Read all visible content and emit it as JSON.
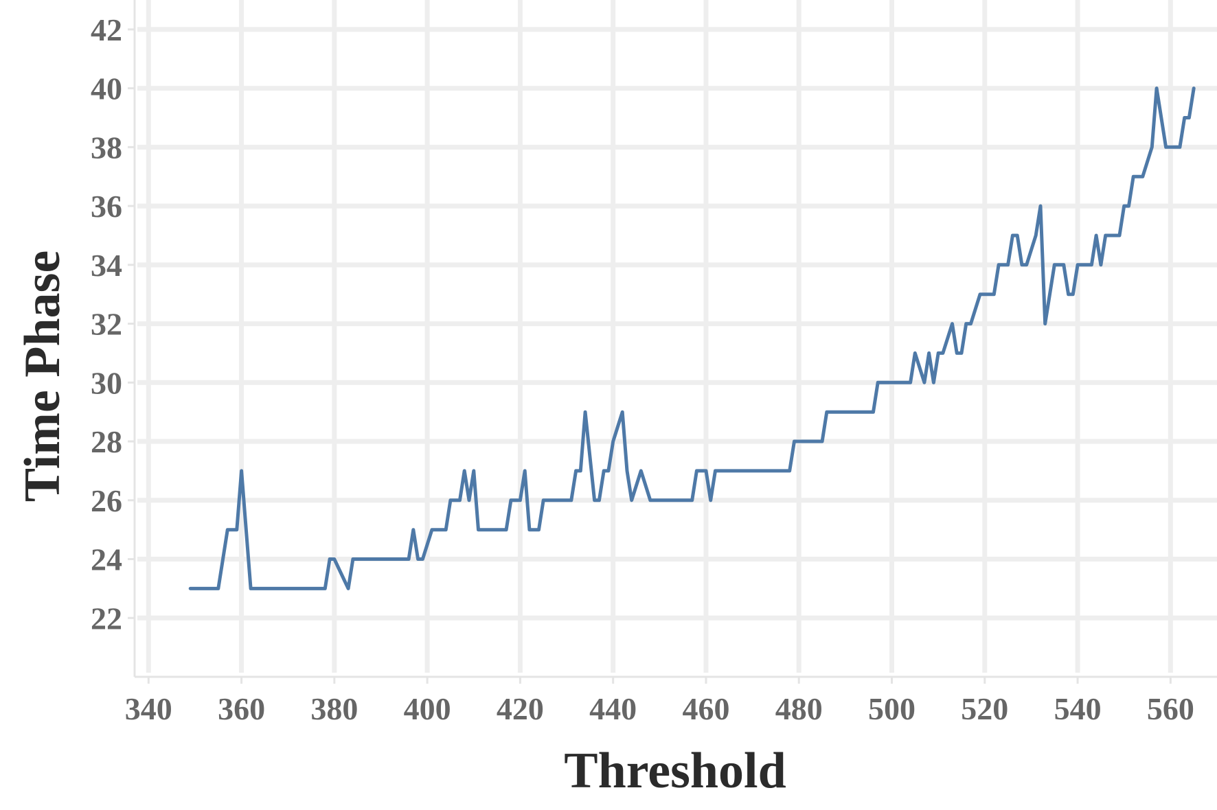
{
  "chart_data": {
    "type": "line",
    "xlabel": "Threshold",
    "ylabel": "Time Phase",
    "xlim": [
      337,
      570
    ],
    "ylim": [
      20,
      43
    ],
    "x_ticks": [
      340,
      360,
      380,
      400,
      420,
      440,
      460,
      480,
      500,
      520,
      540,
      560
    ],
    "y_ticks": [
      22,
      24,
      26,
      28,
      30,
      32,
      34,
      36,
      38,
      40,
      42
    ],
    "grid": true,
    "legend": "none",
    "colors": {
      "series": "#4e79a7",
      "grid": "#eeeeee",
      "tick_text": "#666666",
      "title_text": "#2b2b2b"
    },
    "series": [
      {
        "x": [
          349,
          355,
          357,
          359,
          360,
          362,
          378,
          379,
          380,
          383,
          384,
          396,
          397,
          398,
          399,
          401,
          404,
          405,
          407,
          408,
          409,
          410,
          411,
          412,
          417,
          418,
          420,
          421,
          422,
          424,
          425,
          431,
          432,
          433,
          434,
          436,
          437,
          438,
          439,
          440,
          442,
          443,
          444,
          446,
          448,
          457,
          458,
          460,
          461,
          462,
          478,
          479,
          485,
          486,
          496,
          497,
          504,
          505,
          507,
          508,
          509,
          510,
          511,
          513,
          514,
          515,
          516,
          517,
          519,
          520,
          522,
          523,
          525,
          526,
          527,
          528,
          529,
          531,
          532,
          533,
          535,
          537,
          538,
          539,
          540,
          543,
          544,
          545,
          546,
          549,
          550,
          551,
          552,
          553,
          554,
          556,
          557,
          559,
          562,
          563,
          564,
          565
        ],
        "y": [
          23,
          23,
          25,
          25,
          27,
          23,
          23,
          24,
          24,
          23,
          24,
          24,
          25,
          24,
          24,
          25,
          25,
          26,
          26,
          27,
          26,
          27,
          25,
          25,
          25,
          26,
          26,
          27,
          25,
          25,
          26,
          26,
          27,
          27,
          29,
          26,
          26,
          27,
          27,
          28,
          29,
          27,
          26,
          27,
          26,
          26,
          27,
          27,
          26,
          27,
          27,
          28,
          28,
          29,
          29,
          30,
          30,
          31,
          30,
          31,
          30,
          31,
          31,
          32,
          31,
          31,
          32,
          32,
          33,
          33,
          33,
          34,
          34,
          35,
          35,
          34,
          34,
          35,
          36,
          32,
          34,
          34,
          33,
          33,
          34,
          34,
          35,
          34,
          35,
          35,
          36,
          36,
          37,
          37,
          37,
          38,
          40,
          38,
          38,
          39,
          39,
          40
        ]
      }
    ]
  }
}
